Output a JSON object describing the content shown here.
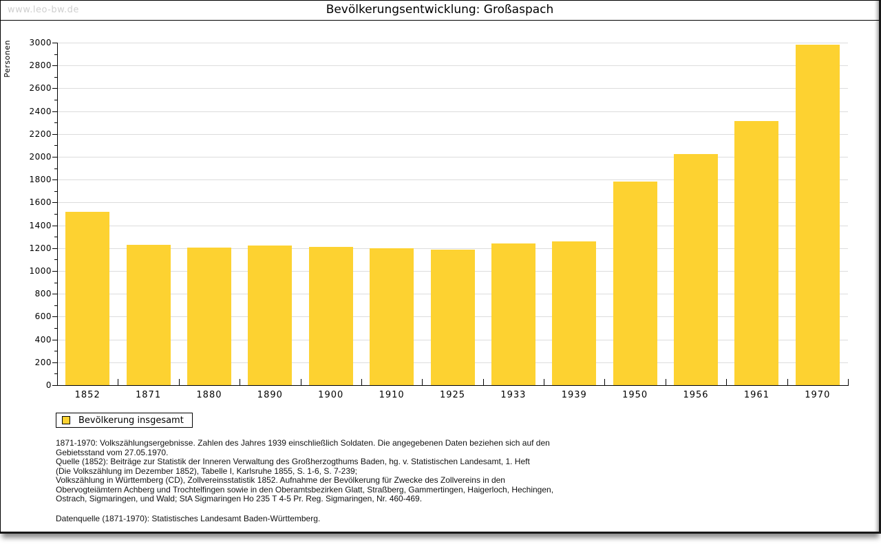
{
  "window": {
    "watermark": "www.leo-bw.de",
    "title": "Bevölkerungsentwicklung: Großaspach"
  },
  "legend": {
    "label": "Bevölkerung insgesamt",
    "swatch_color": "#FDD231"
  },
  "colors": {
    "bar": "#FDD231",
    "gridline": "#DCDCDC",
    "axis": "#000000",
    "watermark": "#CFCFCF"
  },
  "chart_data": {
    "type": "bar",
    "title": "Bevölkerungsentwicklung: Großaspach",
    "categories": [
      "1852",
      "1871",
      "1880",
      "1890",
      "1900",
      "1910",
      "1925",
      "1933",
      "1939",
      "1950",
      "1956",
      "1961",
      "1970"
    ],
    "values": [
      1520,
      1230,
      1206,
      1224,
      1210,
      1196,
      1188,
      1240,
      1260,
      1785,
      2026,
      2311,
      2982
    ],
    "series_name": "Bevölkerung insgesamt",
    "xlabel": "",
    "ylabel": "Personen",
    "ylim": [
      0,
      3000
    ],
    "ytick_major": 200,
    "ytick_minor": 100,
    "grid": true,
    "legend_position": "bottom-left",
    "bar_color": "#FDD231"
  },
  "footnotes": {
    "lines": [
      "1871-1970: Volkszählungsergebnisse. Zahlen des Jahres 1939 einschließlich Soldaten. Die angegebenen Daten beziehen sich auf den",
      "Gebietsstand vom 27.05.1970.",
      "Quelle (1852): Beiträge zur Statistik der Inneren Verwaltung des Großherzogthums Baden, hg. v. Statistischen Landesamt, 1. Heft",
      "(Die Volkszählung im Dezember 1852), Tabelle I, Karlsruhe 1855, S. 1-6, S. 7-239;",
      "Volkszählung in Württemberg (CD), Zollvereinsstatistik 1852. Aufnahme der Bevölkerung für Zwecke des Zollvereins in den",
      "Obervogteiämtern Achberg und Trochtelfingen sowie in den Oberamtsbezirken Glatt, Straßberg, Gammertingen, Haigerloch, Hechingen,",
      "Ostrach, Sigmaringen, und Wald; StA Sigmaringen Ho 235 T 4-5 Pr. Reg. Sigmaringen, Nr. 460-469."
    ],
    "source": "Datenquelle (1871-1970): Statistisches Landesamt Baden-Württemberg."
  }
}
